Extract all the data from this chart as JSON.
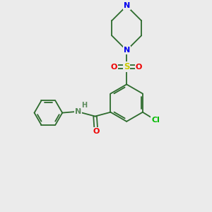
{
  "bg_color": "#ebebeb",
  "bond_color": "#2d6b2d",
  "atom_colors": {
    "N": "#0000ee",
    "O": "#ee0000",
    "S": "#cccc00",
    "Cl": "#00bb00",
    "C": "#2d6b2d",
    "H": "#5a8a5a"
  },
  "font_size": 8.0,
  "bond_width": 1.3,
  "figsize": [
    3.0,
    3.0
  ],
  "dpi": 100
}
